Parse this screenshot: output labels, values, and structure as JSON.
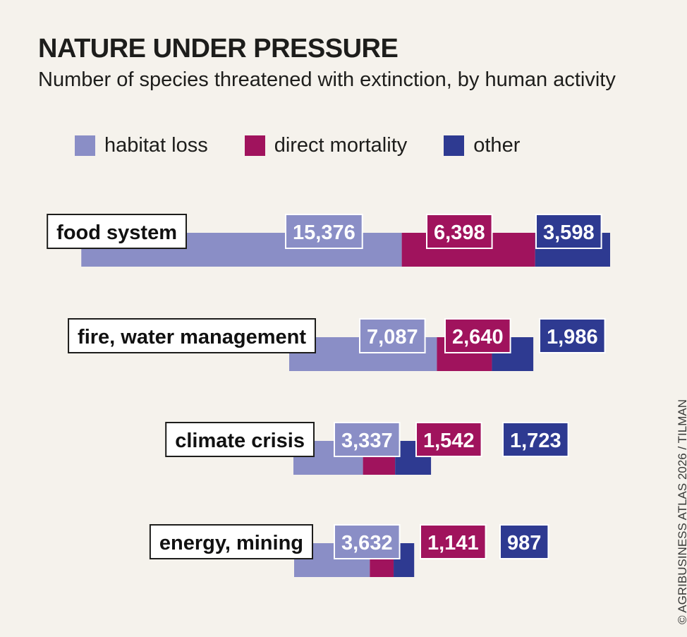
{
  "title": "NATURE UNDER PRESSURE",
  "subtitle": "Number of species threatened with extinction, by human activity",
  "credit": "© AGRIBUSINESS ATLAS 2026 / TILMAN",
  "colors": {
    "habitat_loss": "#8a8ec6",
    "direct_mortality": "#a0135d",
    "other": "#2e3a91",
    "background": "#f5f2ec"
  },
  "chart_data": {
    "type": "bar",
    "orientation": "horizontal",
    "stacked": true,
    "title": "NATURE UNDER PRESSURE",
    "subtitle": "Number of species threatened with extinction, by human activity",
    "legend_position": "top-left",
    "categories": [
      "food system",
      "fire, water management",
      "climate crisis",
      "energy, mining"
    ],
    "series": [
      {
        "name": "habitat loss",
        "values": [
          15376,
          7087,
          3337,
          3632
        ]
      },
      {
        "name": "direct mortality",
        "values": [
          6398,
          2640,
          1542,
          1141
        ]
      },
      {
        "name": "other",
        "values": [
          3598,
          1986,
          1723,
          987
        ]
      }
    ],
    "data_labels": {
      "habitat loss": [
        "15,376",
        "7,087",
        "3,337",
        "3,632"
      ],
      "direct mortality": [
        "6,398",
        "2,640",
        "1,542",
        "1,141"
      ],
      "other": [
        "3,598",
        "1,986",
        "1,723",
        "987"
      ]
    }
  }
}
